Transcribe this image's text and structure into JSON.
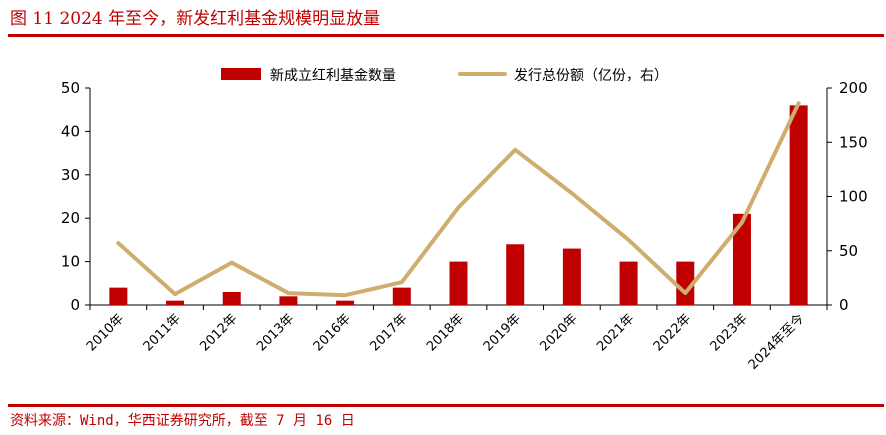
{
  "figure": {
    "title": "图 11  2024 年至今，新发红利基金规模明显放量",
    "source": "资料来源：Wind，华西证券研究所，截至 7 月 16 日"
  },
  "colors": {
    "accent": "#c00000",
    "bar": "#c00000",
    "line": "#cfad6e",
    "axis": "#000000",
    "text": "#000000"
  },
  "chart_data": {
    "type": "bar",
    "categories": [
      "2010年",
      "2011年",
      "2012年",
      "2013年",
      "2016年",
      "2017年",
      "2018年",
      "2019年",
      "2020年",
      "2021年",
      "2022年",
      "2023年",
      "2024年至今"
    ],
    "series": [
      {
        "name": "新成立红利基金数量",
        "type": "bar",
        "axis": "left",
        "values": [
          4,
          1,
          3,
          2,
          1,
          4,
          10,
          14,
          13,
          10,
          10,
          21,
          46
        ]
      },
      {
        "name": "发行总份额（亿份，右）",
        "type": "line",
        "axis": "right",
        "values": [
          57,
          10,
          39,
          11,
          9,
          21,
          90,
          143,
          103,
          60,
          11,
          76,
          186
        ]
      }
    ],
    "ylim_left": [
      0,
      50
    ],
    "yticks_left": [
      0,
      10,
      20,
      30,
      40,
      50
    ],
    "ylim_right": [
      0,
      200
    ],
    "yticks_right": [
      0,
      50,
      100,
      150,
      200
    ],
    "legend_position": "top-center",
    "grid": false
  }
}
